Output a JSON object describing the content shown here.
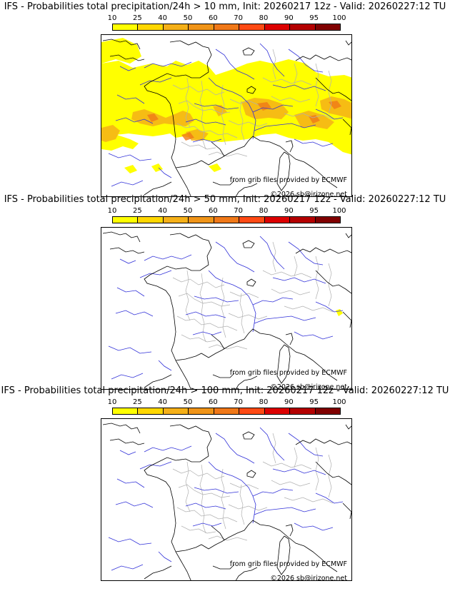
{
  "panels": [
    {
      "title": "IFS - Probabilities total precipitation/24h > 10 mm, Init: 20260217 12z - Valid: 20260227:12 TU",
      "threshold": "> 10 mm",
      "coverage": "widespread"
    },
    {
      "title": "IFS - Probabilities total precipitation/24h > 50 mm, Init: 20260217 12z - Valid: 20260227:12 TU",
      "threshold": "> 50 mm",
      "coverage": "isolated"
    },
    {
      "title": "IFS - Probabilities total precipitation/24h > 100 mm, Init: 20260217 12z - Valid: 20260227:12 TU",
      "threshold": "> 100 mm",
      "coverage": "none"
    }
  ],
  "colorbar": {
    "ticks": [
      "10",
      "25",
      "40",
      "50",
      "60",
      "70",
      "80",
      "90",
      "95",
      "100"
    ],
    "colors": [
      "#ffff00",
      "#ffd700",
      "#f5b018",
      "#f09418",
      "#f07818",
      "#ff4a14",
      "#dc0000",
      "#b40000",
      "#800000"
    ]
  },
  "credits": {
    "source": "from grib files provided by ECMWF",
    "copyright": "©2026 sb@irizone.net"
  },
  "colors": {
    "rivers": "#3030d8",
    "coastline": "#000000",
    "admin": "#b0b0b0",
    "prob_low": "#ffff00",
    "prob_mid": "#f5b018",
    "prob_high": "#f07818"
  }
}
